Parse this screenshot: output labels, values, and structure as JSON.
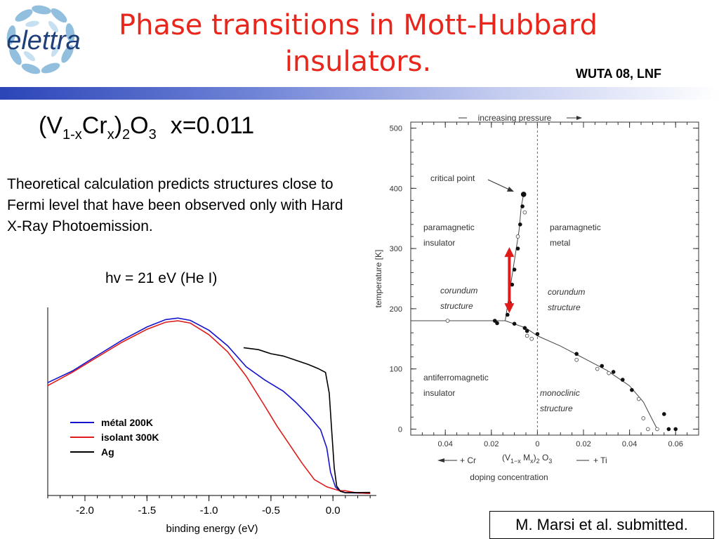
{
  "logo": {
    "text": "elettra"
  },
  "title": {
    "line1": "Phase transitions in Mott-Hubbard",
    "line2": "insulators."
  },
  "event": "WUTA 08, LNF",
  "formula": {
    "open": "(V",
    "sub1": "1-x",
    "mid1": "Cr",
    "sub2": "x",
    "mid2": ")",
    "sub3": "2",
    "mid3": "O",
    "sub4": "3",
    "x_value": "x=0.011"
  },
  "body_text": "Theoretical calculation predicts structures close to Fermi level that have been observed only with Hard X-Ray Photoemission.",
  "hv_label": "hv = 21 eV (He I)",
  "citation": "M. Marsi et al. submitted.",
  "colors": {
    "title": "#e8261c",
    "metal": "#1414cc",
    "insulant": "#e01b1b",
    "ag": "#000000",
    "arrow": "#e01b1b"
  },
  "chart_data": [
    {
      "type": "line",
      "title": "",
      "xlabel": "binding energy (eV)",
      "ylabel": "",
      "xlim": [
        -2.3,
        0.35
      ],
      "ylim": [
        0,
        1
      ],
      "x_ticks": [
        "-2.0",
        "-1.5",
        "-1.0",
        "-0.5",
        "0.0"
      ],
      "legend_position": "bottom-left",
      "series": [
        {
          "name": "métal 200K",
          "color": "#1414cc",
          "x": [
            -2.3,
            -2.1,
            -1.9,
            -1.7,
            -1.5,
            -1.35,
            -1.25,
            -1.15,
            -1.0,
            -0.85,
            -0.7,
            -0.55,
            -0.4,
            -0.3,
            -0.2,
            -0.1,
            -0.05,
            -0.02,
            0.02,
            0.05,
            0.1,
            0.2,
            0.3
          ],
          "y": [
            0.6,
            0.66,
            0.74,
            0.82,
            0.89,
            0.93,
            0.94,
            0.93,
            0.88,
            0.8,
            0.69,
            0.62,
            0.56,
            0.5,
            0.43,
            0.35,
            0.25,
            0.12,
            0.04,
            0.02,
            0.01,
            0.01,
            0.01
          ]
        },
        {
          "name": "isolant 300K",
          "color": "#e01b1b",
          "x": [
            -2.3,
            -2.1,
            -1.9,
            -1.7,
            -1.5,
            -1.35,
            -1.25,
            -1.15,
            -1.0,
            -0.85,
            -0.7,
            -0.55,
            -0.45,
            -0.35,
            -0.25,
            -0.15,
            -0.05,
            0.05,
            0.1,
            0.2,
            0.3
          ],
          "y": [
            0.58,
            0.65,
            0.73,
            0.81,
            0.88,
            0.92,
            0.93,
            0.92,
            0.86,
            0.77,
            0.64,
            0.48,
            0.37,
            0.27,
            0.17,
            0.08,
            0.04,
            0.02,
            0.02,
            0.01,
            0.01
          ]
        },
        {
          "name": "Ag",
          "color": "#000000",
          "x": [
            -0.72,
            -0.6,
            -0.5,
            -0.4,
            -0.3,
            -0.2,
            -0.12,
            -0.06,
            -0.03,
            -0.01,
            0.01,
            0.03,
            0.06,
            0.1,
            0.2,
            0.3
          ],
          "y": [
            0.78,
            0.77,
            0.75,
            0.74,
            0.72,
            0.7,
            0.68,
            0.66,
            0.55,
            0.35,
            0.15,
            0.05,
            0.02,
            0.01,
            0.01,
            0.01
          ]
        }
      ]
    },
    {
      "type": "scatter",
      "title": "",
      "xlabel": "doping concentration",
      "ylabel": "temperature [K]",
      "xlim": [
        -0.055,
        0.07
      ],
      "ylim": [
        -10,
        510
      ],
      "x_ticks": [
        "0.04",
        "0.02",
        "0",
        "0.02",
        "0.04",
        "0.06"
      ],
      "y_ticks": [
        "0",
        "100",
        "200",
        "300",
        "400",
        "500"
      ],
      "header": "increasing pressure",
      "bottom_left": "+ Cr",
      "bottom_right": "+ Ti",
      "bottom_formula": {
        "a": "(V",
        "b": "1−x",
        "c": " M",
        "d": "x",
        "e": ")",
        "f": "2",
        "g": " O",
        "h": "3"
      },
      "region_labels": {
        "pm_insulator": [
          "paramagnetic",
          "insulator"
        ],
        "pm_metal": [
          "paramagnetic",
          "metal"
        ],
        "af_insulator": [
          "antiferromagnetic",
          "insulator"
        ],
        "corundum_left": [
          "corundum",
          "structure"
        ],
        "corundum_right": [
          "corundum",
          "structure"
        ],
        "monoclinic": [
          "monoclinic",
          "structure"
        ],
        "critical_point": "critical point"
      },
      "boundaries": {
        "mit_line": {
          "x": [
            -0.014,
            -0.012,
            -0.01,
            -0.008,
            -0.007,
            -0.006
          ],
          "y": [
            180,
            230,
            280,
            330,
            370,
            390
          ]
        },
        "horizontal_line": {
          "x": [
            -0.055,
            -0.014
          ],
          "y": [
            180,
            180
          ]
        },
        "af_line": {
          "x": [
            -0.014,
            -0.005,
            0.0,
            0.01,
            0.02,
            0.03,
            0.04,
            0.046,
            0.05,
            0.052
          ],
          "y": [
            180,
            168,
            155,
            138,
            118,
            98,
            72,
            45,
            15,
            0
          ]
        }
      },
      "filled_points": {
        "x": [
          -0.006,
          -0.0065,
          -0.0075,
          -0.0085,
          -0.01,
          -0.011,
          -0.012,
          -0.013,
          -0.0185,
          -0.0175,
          -0.01,
          -0.0055,
          -0.0045,
          0.0,
          0.017,
          0.028,
          0.033,
          0.037,
          0.041,
          0.055,
          0.057,
          0.06
        ],
        "y": [
          390,
          370,
          340,
          300,
          265,
          240,
          210,
          190,
          180,
          176,
          175,
          168,
          163,
          158,
          125,
          105,
          95,
          82,
          65,
          25,
          0,
          0
        ]
      },
      "open_points": {
        "x": [
          -0.039,
          -0.0055,
          -0.0085,
          -0.0045,
          -0.0025,
          0.017,
          0.026,
          0.031,
          0.044,
          0.046,
          0.048,
          0.052
        ],
        "y": [
          180,
          360,
          320,
          155,
          150,
          115,
          100,
          93,
          50,
          18,
          0,
          0
        ]
      },
      "arrow": {
        "x": -0.0122,
        "y_from": 195,
        "y_to": 300
      }
    }
  ]
}
